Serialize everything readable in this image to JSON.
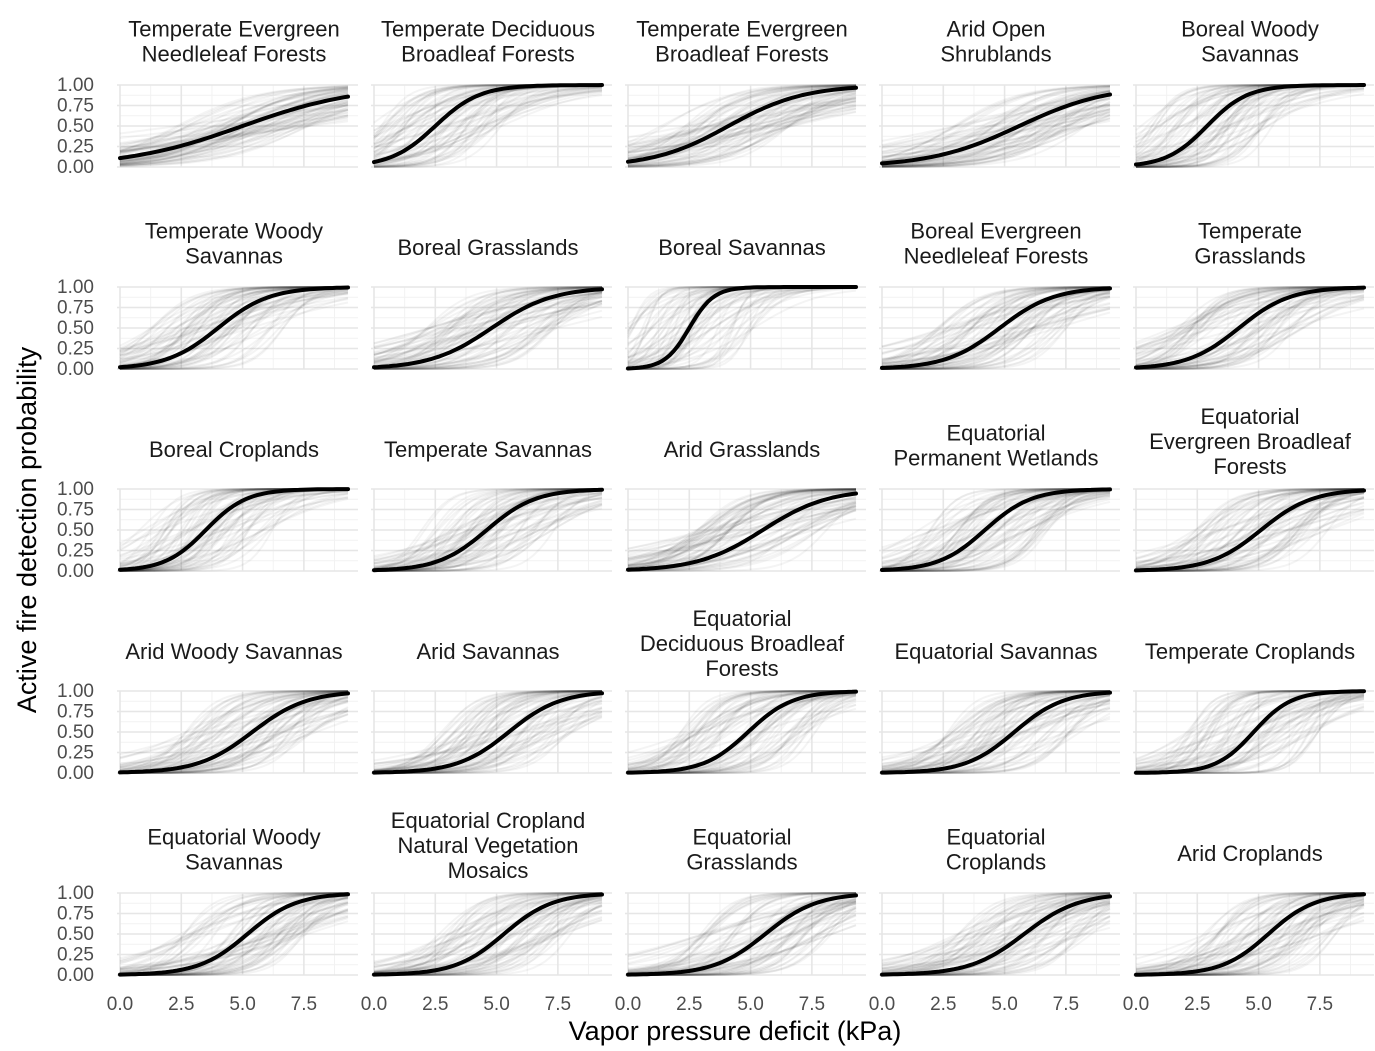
{
  "chart_data": {
    "type": "line",
    "layout": "facet-grid-5x5",
    "xlabel": "Vapor pressure deficit (kPa)",
    "ylabel": "Active fire detection probability",
    "xlim": [
      0,
      9.3
    ],
    "ylim": [
      0,
      1
    ],
    "x_ticks": [
      "0.0",
      "2.5",
      "5.0",
      "7.5"
    ],
    "x_tick_values": [
      0,
      2.5,
      5,
      7.5
    ],
    "y_ticks": [
      "0.00",
      "0.25",
      "0.50",
      "0.75",
      "1.00"
    ],
    "y_tick_values": [
      0,
      0.25,
      0.5,
      0.75,
      1
    ],
    "grid": true,
    "line_color": "#000000",
    "draw_color": "#1a1a1a",
    "panels": [
      {
        "title": [
          "Temperate Evergreen",
          "Needleleaf Forests"
        ],
        "mid": 5.0,
        "slope": 0.42
      },
      {
        "title": [
          "Temperate Deciduous",
          "Broadleaf Forests"
        ],
        "mid": 2.5,
        "slope": 1.1
      },
      {
        "title": [
          "Temperate Evergreen",
          "Broadleaf Forests"
        ],
        "mid": 4.1,
        "slope": 0.65
      },
      {
        "title": [
          "Arid Open",
          "Shrublands"
        ],
        "mid": 5.6,
        "slope": 0.55
      },
      {
        "title": [
          "Boreal Woody",
          "Savannas"
        ],
        "mid": 2.9,
        "slope": 1.2
      },
      {
        "title": [
          "Temperate Woody",
          "Savannas"
        ],
        "mid": 4.0,
        "slope": 0.95
      },
      {
        "title": [
          "Boreal Grasslands"
        ],
        "mid": 4.8,
        "slope": 0.8
      },
      {
        "title": [
          "Boreal Savannas"
        ],
        "mid": 2.5,
        "slope": 2.0
      },
      {
        "title": [
          "Boreal Evergreen",
          "Needleleaf Forests"
        ],
        "mid": 4.8,
        "slope": 0.9
      },
      {
        "title": [
          "Temperate",
          "Grasslands"
        ],
        "mid": 4.2,
        "slope": 0.95
      },
      {
        "title": [
          "Boreal Croplands"
        ],
        "mid": 3.5,
        "slope": 1.2
      },
      {
        "title": [
          "Temperate Savannas"
        ],
        "mid": 4.6,
        "slope": 1.0
      },
      {
        "title": [
          "Arid Grasslands"
        ],
        "mid": 5.5,
        "slope": 0.75
      },
      {
        "title": [
          "Equatorial",
          "Permanent Wetlands"
        ],
        "mid": 4.2,
        "slope": 1.05
      },
      {
        "title": [
          "Equatorial",
          "Evergreen Broadleaf",
          "Forests"
        ],
        "mid": 5.1,
        "slope": 0.95
      },
      {
        "title": [
          "Arid Woody Savannas"
        ],
        "mid": 5.4,
        "slope": 0.9
      },
      {
        "title": [
          "Arid Savannas"
        ],
        "mid": 5.5,
        "slope": 0.95
      },
      {
        "title": [
          "Equatorial",
          "Deciduous Broadleaf",
          "Forests"
        ],
        "mid": 4.9,
        "slope": 1.1
      },
      {
        "title": [
          "Equatorial Savannas"
        ],
        "mid": 5.4,
        "slope": 1.0
      },
      {
        "title": [
          "Temperate Croplands"
        ],
        "mid": 4.8,
        "slope": 1.3
      },
      {
        "title": [
          "Equatorial Woody",
          "Savannas"
        ],
        "mid": 5.2,
        "slope": 1.0
      },
      {
        "title": [
          "Equatorial Cropland",
          "Natural Vegetation",
          "Mosaics"
        ],
        "mid": 5.3,
        "slope": 1.0
      },
      {
        "title": [
          "Equatorial",
          "Grasslands"
        ],
        "mid": 5.6,
        "slope": 0.95
      },
      {
        "title": [
          "Equatorial",
          "Croplands"
        ],
        "mid": 5.8,
        "slope": 0.9
      },
      {
        "title": [
          "Arid Croplands"
        ],
        "mid": 5.4,
        "slope": 1.05
      }
    ]
  }
}
